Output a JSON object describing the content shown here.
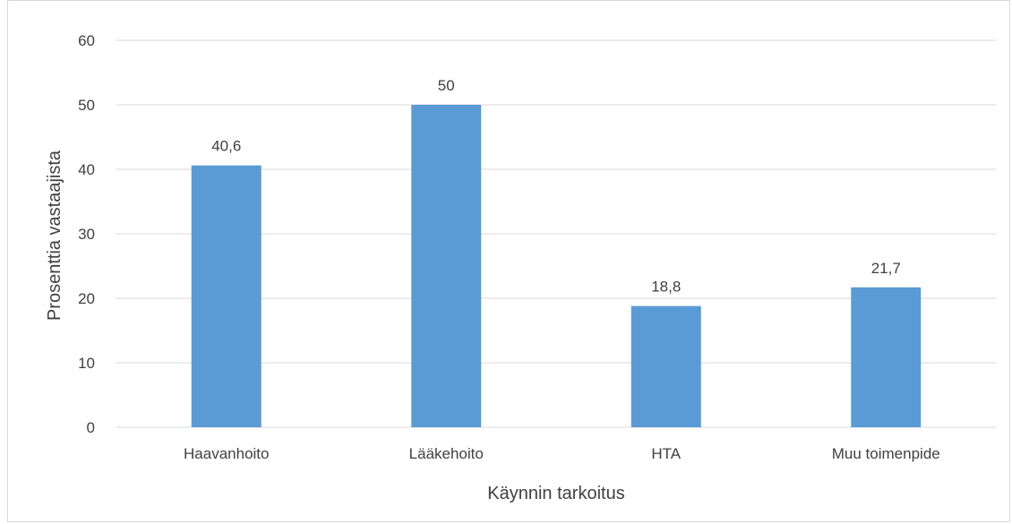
{
  "chart_data": {
    "type": "bar",
    "categories": [
      "Haavanhoito",
      "Lääkehoito",
      "HTA",
      "Muu toimenpide"
    ],
    "values": [
      40.6,
      50,
      18.8,
      21.7
    ],
    "value_labels": [
      "40,6",
      "50",
      "18,8",
      "21,7"
    ],
    "title": "",
    "xlabel": "Käynnin tarkoitus",
    "ylabel": "Prosenttia vastaajista",
    "ylim": [
      0,
      60
    ],
    "yticks": [
      0,
      10,
      20,
      30,
      40,
      50,
      60
    ],
    "grid": true,
    "legend": "none",
    "colors": {
      "bar": "#5b9bd5",
      "grid": "#d9d9d9",
      "text": "#404040"
    }
  }
}
